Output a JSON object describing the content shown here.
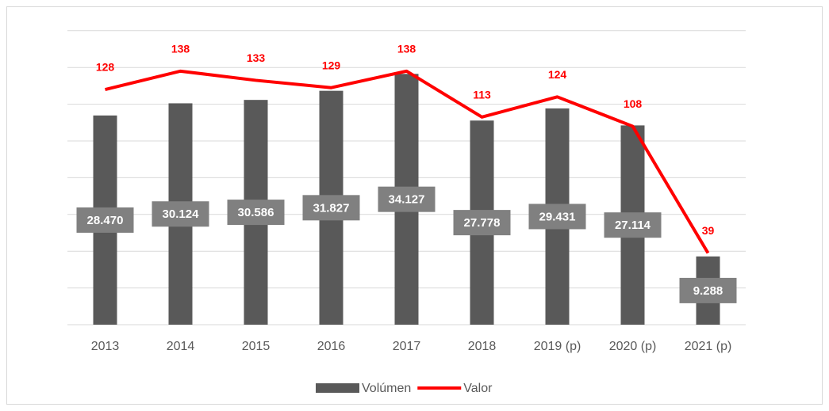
{
  "chart_data": {
    "type": "bar",
    "categories": [
      "2013",
      "2014",
      "2015",
      "2016",
      "2017",
      "2018",
      "2019 (p)",
      "2020 (p)",
      "2021 (p)"
    ],
    "series": [
      {
        "name": "Volúmen",
        "type": "bar",
        "color": "#595959",
        "values": [
          28470,
          30124,
          30586,
          31827,
          34127,
          27778,
          29431,
          27114,
          9288
        ],
        "value_labels": [
          "28.470",
          "30.124",
          "30.586",
          "31.827",
          "34.127",
          "27.778",
          "29.431",
          "27.114",
          "9.288"
        ]
      },
      {
        "name": "Valor",
        "type": "line",
        "axis": "y2",
        "color": "#ff0000",
        "values": [
          128,
          138,
          133,
          129,
          138,
          113,
          124,
          108,
          39
        ]
      }
    ],
    "ylim": [
      0,
      40000
    ],
    "yticks": [
      0,
      5000,
      10000,
      15000,
      20000,
      25000,
      30000,
      35000,
      40000
    ],
    "y2lim": [
      0,
      160
    ],
    "grid": true,
    "legend": "bottom"
  }
}
